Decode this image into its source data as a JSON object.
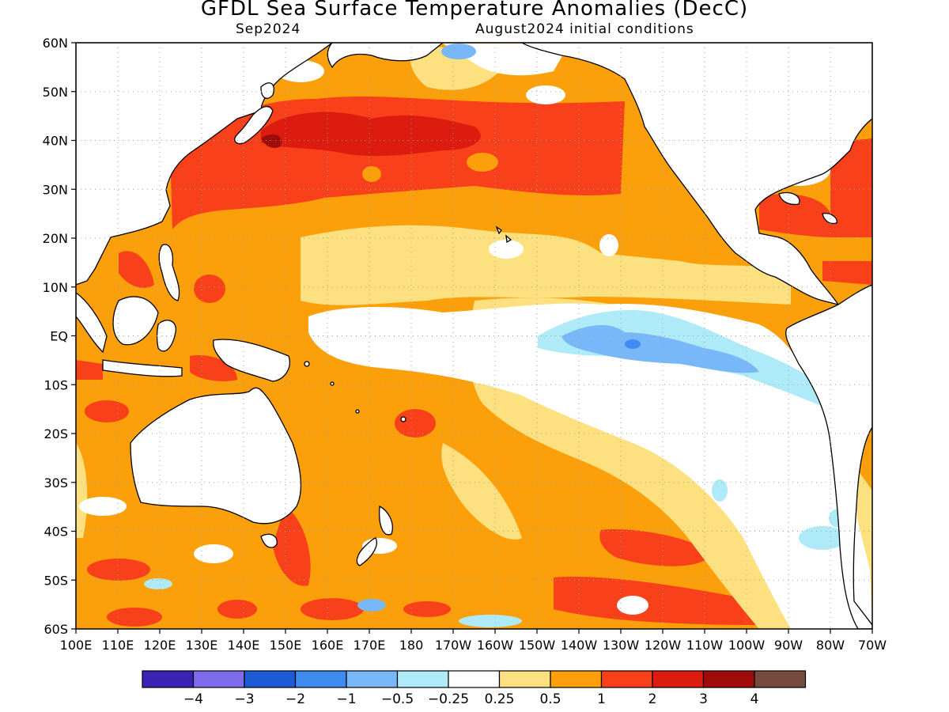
{
  "title": "GFDL Sea Surface Temperature Anomalies (DecC)",
  "subtitle_left": "Sep2024",
  "subtitle_right": "August2024 initial conditions",
  "lat_ticks": [
    "60N",
    "50N",
    "40N",
    "30N",
    "20N",
    "10N",
    "EQ",
    "10S",
    "20S",
    "30S",
    "40S",
    "50S",
    "60S"
  ],
  "lon_ticks": [
    "100E",
    "110E",
    "120E",
    "130E",
    "140E",
    "150E",
    "160E",
    "170E",
    "180",
    "170W",
    "160W",
    "150W",
    "140W",
    "130W",
    "120W",
    "110W",
    "100W",
    "90W",
    "80W",
    "70W"
  ],
  "colorbar": {
    "colors": [
      "#3a22b4",
      "#7e6cea",
      "#1c5ad6",
      "#3e8cf0",
      "#78b8f8",
      "#aeeaf8",
      "#ffffff",
      "#fde080",
      "#fba00a",
      "#f8401a",
      "#dd1c10",
      "#a00c0a",
      "#764a3e"
    ],
    "labels": [
      "-4",
      "-3",
      "-2",
      "-1",
      "-0.5",
      "-0.25",
      "0.25",
      "0.5",
      "1",
      "2",
      "3",
      "4"
    ]
  }
}
